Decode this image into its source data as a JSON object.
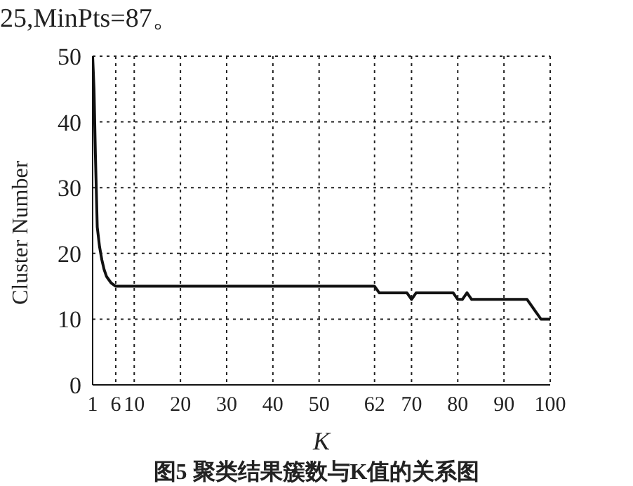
{
  "chart_data": {
    "type": "line",
    "xlabel": "K",
    "ylabel": "Cluster  Number",
    "annotations": [
      "25,MinPts=87。",
      "图5  聚类结果簇数与K值的关系图"
    ],
    "series": [
      {
        "color": "#111111",
        "x": [
          1,
          1.3,
          1.6,
          2,
          2.5,
          3,
          3.5,
          4,
          4.5,
          5,
          6,
          10,
          20,
          30,
          40,
          50,
          62,
          63,
          69,
          70,
          71,
          79,
          80,
          81,
          82,
          83,
          90,
          95,
          98,
          100
        ],
        "values": [
          50,
          45,
          35,
          24,
          21,
          19,
          17.5,
          16.5,
          16,
          15.5,
          15,
          15,
          15,
          15,
          15,
          15,
          15,
          14,
          14,
          13,
          14,
          14,
          13,
          13,
          14,
          13,
          13,
          13,
          10,
          10
        ]
      }
    ],
    "xlim": [
      1,
      100
    ],
    "xticks": [
      1,
      6,
      10,
      20,
      30,
      40,
      50,
      62,
      70,
      80,
      90,
      100
    ],
    "ylim": [
      0,
      50
    ],
    "yticks": [
      0,
      10,
      20,
      30,
      40,
      50
    ],
    "grid": true,
    "marker": "none",
    "line_style": "solid",
    "legend": false
  }
}
